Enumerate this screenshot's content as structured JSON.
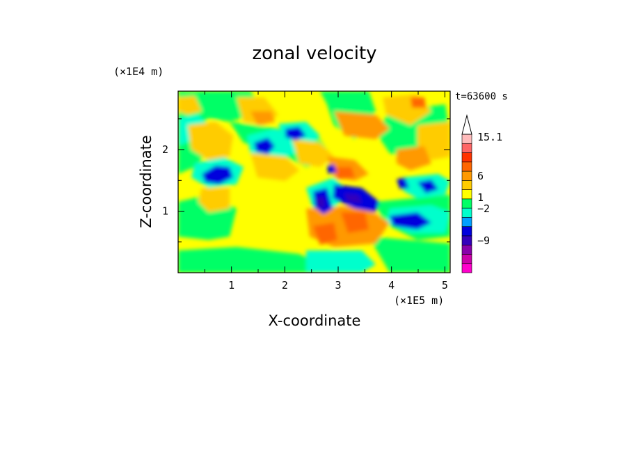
{
  "chart_data": {
    "type": "heatmap",
    "title": "zonal velocity",
    "xlabel": "X-coordinate",
    "ylabel": "Z-coordinate",
    "x_unit": "(×1E5 m)",
    "y_unit": "(×1E4 m)",
    "time_label": "t=63600 s",
    "xlim": [
      0,
      5.1
    ],
    "ylim": [
      0,
      2.95
    ],
    "x_ticks": [
      "1",
      "2",
      "3",
      "4",
      "5"
    ],
    "y_ticks": [
      "1",
      "2"
    ],
    "colorbar": {
      "labels": [
        "15.1",
        "6",
        "1",
        "−2",
        "−9"
      ],
      "colors": [
        "#ff00cc",
        "#cc00aa",
        "#8800aa",
        "#3300bb",
        "#0000dd",
        "#00a0ff",
        "#00ffcc",
        "#00ff66",
        "#ffff00",
        "#ffcc00",
        "#ff9900",
        "#ff6600",
        "#ff3300",
        "#ff6666",
        "#ffbbbb"
      ]
    }
  }
}
